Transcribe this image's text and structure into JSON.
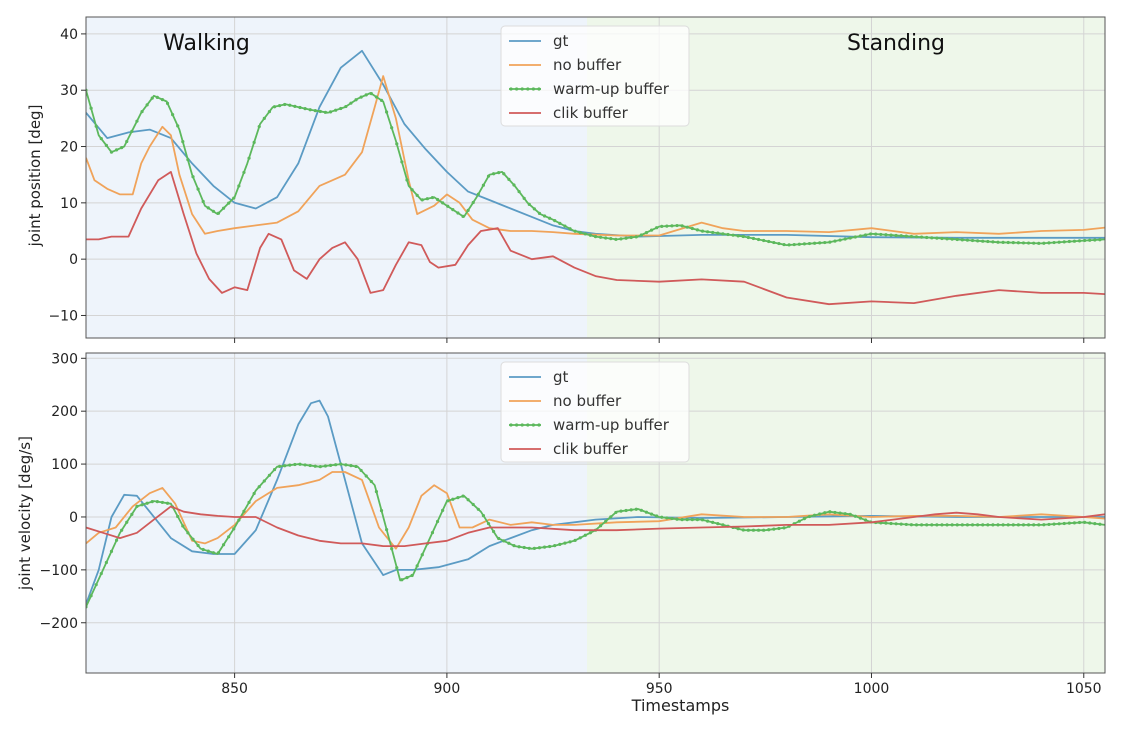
{
  "chart_data": [
    {
      "type": "line",
      "ylabel": "joint position [deg]",
      "xlim": [
        815,
        1055
      ],
      "ylim": [
        -14,
        43
      ],
      "xticks": [
        850,
        900,
        950,
        1000,
        1050
      ],
      "yticks": [
        -10,
        0,
        10,
        20,
        30,
        40
      ],
      "ytick_labels": [
        "−10",
        "0",
        "10",
        "20",
        "30",
        "40"
      ],
      "grid": true,
      "legend": "top-center",
      "regions": [
        {
          "label": "Walking",
          "x": [
            815,
            933
          ],
          "color": "#eef4fb"
        },
        {
          "label": "Standing",
          "x": [
            933,
            1055
          ],
          "color": "#eef7ea"
        }
      ],
      "series": [
        {
          "name": "gt",
          "color": "#5b9bc4",
          "x": [
            815,
            820,
            825,
            830,
            835,
            840,
            845,
            850,
            855,
            860,
            865,
            870,
            875,
            880,
            885,
            890,
            895,
            900,
            905,
            910,
            915,
            920,
            925,
            930,
            935,
            945,
            960,
            980,
            1000,
            1020,
            1040,
            1055
          ],
          "y": [
            26,
            21.5,
            22.5,
            23,
            21.5,
            17,
            13,
            10,
            9,
            11,
            17,
            27,
            34,
            37,
            31,
            24,
            19.5,
            15.5,
            12,
            10.5,
            9,
            7.5,
            6,
            5,
            4.5,
            4,
            4.3,
            4.3,
            3.9,
            3.8,
            3.8,
            3.8
          ]
        },
        {
          "name": "no buffer",
          "color": "#f0a35a",
          "x": [
            815,
            817,
            820,
            823,
            826,
            828,
            830,
            833,
            835,
            837,
            840,
            843,
            846,
            850,
            855,
            860,
            865,
            870,
            873,
            876,
            880,
            883,
            885,
            888,
            891,
            893,
            897,
            900,
            903,
            906,
            910,
            915,
            920,
            925,
            930,
            940,
            950,
            960,
            965,
            970,
            980,
            990,
            1000,
            1010,
            1020,
            1030,
            1040,
            1050,
            1055
          ],
          "y": [
            18,
            14,
            12.5,
            11.5,
            11.5,
            17,
            20,
            23.5,
            22,
            15,
            8,
            4.5,
            5,
            5.5,
            6,
            6.5,
            8.5,
            13,
            14,
            15,
            19,
            27,
            32.5,
            25,
            14,
            8,
            9.5,
            11.5,
            10,
            7,
            5.5,
            5,
            5,
            4.8,
            4.5,
            4.2,
            4.2,
            6.5,
            5.5,
            5,
            5,
            4.8,
            5.5,
            4.5,
            4.8,
            4.5,
            5,
            5.2,
            5.6
          ]
        },
        {
          "name": "warm-up buffer",
          "color": "#5cb85c",
          "markers": true,
          "x": [
            815,
            818,
            821,
            824,
            828,
            831,
            834,
            837,
            840,
            843,
            846,
            850,
            853,
            856,
            859,
            862,
            865,
            868,
            872,
            876,
            879,
            882,
            885,
            888,
            891,
            894,
            897,
            900,
            904,
            907,
            910,
            913,
            916,
            919,
            922,
            925,
            930,
            935,
            940,
            945,
            950,
            955,
            960,
            970,
            980,
            990,
            1000,
            1010,
            1020,
            1030,
            1040,
            1050,
            1055
          ],
          "y": [
            30,
            22,
            19,
            20,
            26,
            29,
            28,
            23,
            15,
            9.5,
            8,
            11,
            17,
            24,
            27,
            27.5,
            27,
            26.5,
            26,
            27,
            28.5,
            29.5,
            28,
            21,
            13,
            10.5,
            11,
            9.5,
            7.5,
            11,
            15,
            15.5,
            13,
            10,
            8,
            7,
            5,
            4,
            3.5,
            4,
            5.8,
            6,
            5,
            4,
            2.5,
            3,
            4.5,
            4,
            3.5,
            3,
            2.8,
            3.3,
            3.5
          ]
        },
        {
          "name": "clik buffer",
          "color": "#d05a5a",
          "x": [
            815,
            818,
            821,
            825,
            828,
            832,
            835,
            838,
            841,
            844,
            847,
            850,
            853,
            856,
            858,
            861,
            864,
            867,
            870,
            873,
            876,
            879,
            882,
            885,
            888,
            891,
            894,
            896,
            898,
            902,
            905,
            908,
            912,
            915,
            920,
            925,
            930,
            935,
            940,
            950,
            960,
            970,
            980,
            990,
            1000,
            1010,
            1020,
            1030,
            1040,
            1050,
            1055
          ],
          "y": [
            3.5,
            3.5,
            4,
            4,
            9,
            14,
            15.5,
            8,
            1,
            -3.5,
            -6,
            -5,
            -5.5,
            2,
            4.5,
            3.5,
            -2,
            -3.5,
            0,
            2,
            3,
            0,
            -6,
            -5.5,
            -1,
            3,
            2.5,
            -0.5,
            -1.5,
            -1,
            2.5,
            5,
            5.5,
            1.5,
            0,
            0.5,
            -1.5,
            -3,
            -3.7,
            -4,
            -3.6,
            -4,
            -6.8,
            -8,
            -7.5,
            -7.8,
            -6.5,
            -5.5,
            -6,
            -6,
            -6.2
          ]
        }
      ]
    },
    {
      "type": "line",
      "xlabel": "Timestamps",
      "ylabel": "joint velocity [deg/s]",
      "xlim": [
        815,
        1055
      ],
      "ylim": [
        -295,
        310
      ],
      "xticks": [
        850,
        900,
        950,
        1000,
        1050
      ],
      "xtick_labels": [
        "850",
        "900",
        "950",
        "1000",
        "1050"
      ],
      "yticks": [
        -200,
        -100,
        0,
        100,
        200,
        300
      ],
      "ytick_labels": [
        "−200",
        "−100",
        "0",
        "100",
        "200",
        "300"
      ],
      "grid": true,
      "legend": "top-center",
      "regions": [
        {
          "x": [
            815,
            933
          ],
          "color": "#eef4fb"
        },
        {
          "x": [
            933,
            1055
          ],
          "color": "#eef7ea"
        }
      ],
      "series": [
        {
          "name": "gt",
          "color": "#5b9bc4",
          "x": [
            815,
            818,
            821,
            824,
            827,
            830,
            835,
            840,
            845,
            850,
            855,
            860,
            865,
            868,
            870,
            872,
            875,
            880,
            885,
            888,
            892,
            898,
            905,
            910,
            915,
            920,
            925,
            930,
            935,
            945,
            960,
            980,
            1000,
            1020,
            1040,
            1055
          ],
          "y": [
            -165,
            -100,
            0,
            42,
            40,
            10,
            -40,
            -65,
            -70,
            -70,
            -25,
            70,
            175,
            215,
            220,
            190,
            100,
            -50,
            -110,
            -100,
            -100,
            -95,
            -80,
            -55,
            -40,
            -25,
            -15,
            -10,
            -5,
            0,
            -2,
            0,
            2,
            0,
            0,
            0
          ]
        },
        {
          "name": "no buffer",
          "color": "#f0a35a",
          "x": [
            815,
            818,
            822,
            826,
            830,
            833,
            836,
            840,
            843,
            846,
            850,
            855,
            860,
            865,
            870,
            873,
            876,
            880,
            884,
            888,
            891,
            894,
            897,
            900,
            903,
            906,
            910,
            915,
            920,
            925,
            930,
            940,
            950,
            960,
            970,
            980,
            990,
            1000,
            1010,
            1020,
            1030,
            1040,
            1050,
            1055
          ],
          "y": [
            -50,
            -30,
            -20,
            20,
            45,
            55,
            25,
            -45,
            -50,
            -40,
            -15,
            30,
            55,
            60,
            70,
            85,
            85,
            70,
            -20,
            -60,
            -20,
            40,
            60,
            45,
            -20,
            -20,
            -5,
            -15,
            -10,
            -15,
            -15,
            -10,
            -8,
            5,
            0,
            0,
            5,
            0,
            2,
            2,
            0,
            5,
            0,
            -3
          ]
        },
        {
          "name": "warm-up buffer",
          "color": "#5cb85c",
          "markers": true,
          "x": [
            815,
            819,
            823,
            827,
            831,
            835,
            838,
            842,
            846,
            850,
            855,
            860,
            865,
            870,
            875,
            879,
            883,
            886,
            889,
            892,
            896,
            900,
            904,
            908,
            912,
            916,
            920,
            925,
            930,
            935,
            940,
            945,
            950,
            955,
            960,
            965,
            970,
            975,
            980,
            985,
            990,
            995,
            1000,
            1010,
            1020,
            1030,
            1040,
            1050,
            1055
          ],
          "y": [
            -170,
            -100,
            -30,
            20,
            30,
            25,
            -20,
            -60,
            -70,
            -20,
            50,
            95,
            100,
            95,
            100,
            95,
            60,
            -30,
            -120,
            -110,
            -40,
            30,
            40,
            10,
            -40,
            -55,
            -60,
            -55,
            -45,
            -25,
            10,
            15,
            0,
            -5,
            -5,
            -15,
            -25,
            -25,
            -20,
            0,
            10,
            5,
            -10,
            -15,
            -15,
            -15,
            -15,
            -10,
            -15
          ]
        },
        {
          "name": "clik buffer",
          "color": "#d05a5a",
          "x": [
            815,
            819,
            823,
            827,
            831,
            835,
            838,
            842,
            846,
            850,
            855,
            860,
            865,
            870,
            875,
            880,
            885,
            890,
            895,
            900,
            905,
            910,
            920,
            930,
            940,
            950,
            960,
            970,
            980,
            990,
            1000,
            1010,
            1015,
            1020,
            1025,
            1030,
            1040,
            1050,
            1055
          ],
          "y": [
            -20,
            -30,
            -40,
            -30,
            -5,
            20,
            10,
            5,
            2,
            0,
            0,
            -20,
            -35,
            -45,
            -50,
            -50,
            -55,
            -55,
            -50,
            -45,
            -30,
            -20,
            -20,
            -25,
            -25,
            -22,
            -20,
            -18,
            -15,
            -15,
            -10,
            0,
            5,
            8,
            5,
            0,
            -5,
            0,
            5
          ]
        }
      ]
    }
  ]
}
